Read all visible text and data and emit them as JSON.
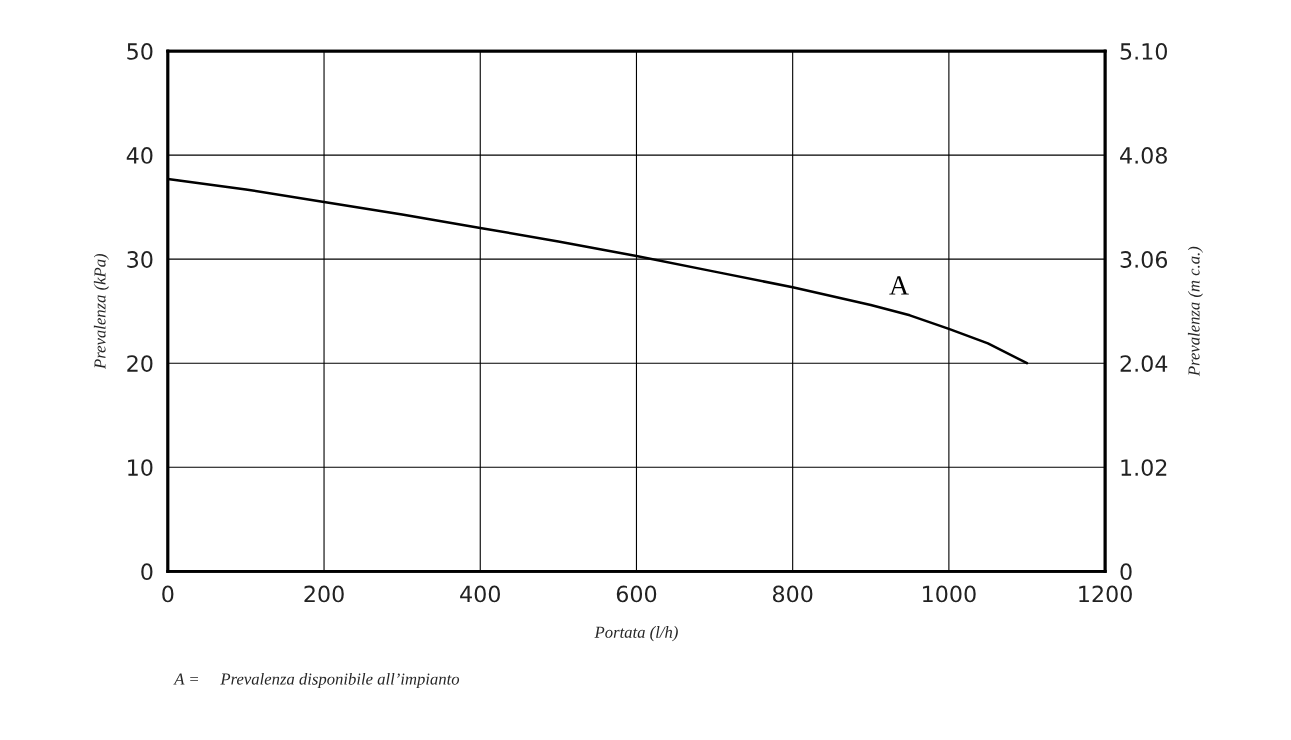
{
  "chart_data": {
    "type": "line",
    "xlabel": "Portata (l/h)",
    "ylabel": "Prevalenza (kPa)",
    "y2label": "Prevalenza (m c.a.)",
    "x": [
      0,
      100,
      200,
      300,
      400,
      500,
      600,
      700,
      800,
      900,
      950,
      1000,
      1050,
      1100
    ],
    "series": [
      {
        "name": "A",
        "color": "#000000",
        "values": [
          37.7,
          36.7,
          35.5,
          34.3,
          33.0,
          31.7,
          30.3,
          28.8,
          27.3,
          25.6,
          24.6,
          23.3,
          21.9,
          20.0
        ]
      }
    ],
    "xlim": [
      0,
      1200
    ],
    "xticks": [
      0,
      200,
      400,
      600,
      800,
      1000,
      1200
    ],
    "ylim": [
      0,
      50
    ],
    "yticks": [
      0,
      10,
      20,
      30,
      40,
      50
    ],
    "y2lim": [
      0,
      5.1
    ],
    "y2ticks": [
      {
        "value": 0,
        "label": "0"
      },
      {
        "value": 1.02,
        "label": "1.02"
      },
      {
        "value": 2.04,
        "label": "2.04"
      },
      {
        "value": 3.06,
        "label": "3.06"
      },
      {
        "value": 4.08,
        "label": "4.08"
      },
      {
        "value": 5.1,
        "label": "5.10"
      }
    ],
    "grid": true,
    "legend": false,
    "marker": "none",
    "line_style": "solid",
    "annotations": [
      "A =     Prevalenza disponibile all’impianto"
    ]
  }
}
